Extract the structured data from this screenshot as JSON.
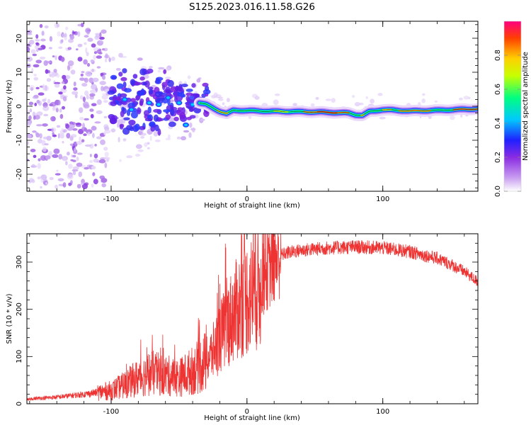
{
  "chart_data": [
    {
      "type": "heatmap",
      "title": "S125.2023.016.11.58.G26",
      "xlabel": "Height of straight line (km)",
      "ylabel": "Frequency (Hz)",
      "xlim": [
        -162,
        170
      ],
      "ylim": [
        -25,
        25
      ],
      "xticks": [
        -100,
        0,
        100
      ],
      "yticks": [
        -20,
        -10,
        0,
        10,
        20
      ],
      "colorbar": {
        "label": "Normalized spectral amplitude",
        "range": [
          0,
          1
        ],
        "ticks": [
          "0.0",
          "0.2",
          "0.4",
          "0.6",
          "0.8"
        ],
        "colormap": [
          "#ffffff",
          "#c89cf0",
          "#8a2be2",
          "#2020ff",
          "#00c8ff",
          "#00ff80",
          "#c8ff00",
          "#ffd000",
          "#ff4000",
          "#ff0080"
        ]
      },
      "ridge": {
        "x": [
          -35,
          -30,
          -25,
          -20,
          -15,
          -10,
          0,
          10,
          20,
          40,
          60,
          75,
          80,
          85,
          90,
          100,
          120,
          140,
          160,
          170
        ],
        "frequency": [
          1,
          0.5,
          -0.5,
          -1.5,
          -2.2,
          -1.2,
          -1.3,
          -1.4,
          -1.5,
          -1.6,
          -1.8,
          -2.0,
          -2.5,
          -2.7,
          -1.6,
          -1.0,
          -1.4,
          -1.2,
          -0.9,
          -0.8
        ]
      }
    },
    {
      "type": "line",
      "xlabel": "Height of straight line (km)",
      "ylabel": "SNR (10 * v/v)",
      "xlim": [
        -162,
        170
      ],
      "ylim": [
        0,
        360
      ],
      "xticks": [
        -100,
        0,
        100
      ],
      "yticks": [
        0,
        100,
        200,
        300
      ],
      "color": "#ee3333",
      "envelope": {
        "x": [
          -162,
          -140,
          -120,
          -100,
          -90,
          -80,
          -70,
          -60,
          -50,
          -40,
          -30,
          -25,
          -20,
          -15,
          -10,
          -5,
          0,
          5,
          10,
          15,
          20,
          25,
          30,
          40,
          60,
          80,
          100,
          120,
          140,
          150,
          160,
          170
        ],
        "snr": [
          10,
          14,
          20,
          28,
          40,
          55,
          65,
          60,
          55,
          70,
          90,
          110,
          140,
          165,
          190,
          210,
          225,
          235,
          250,
          280,
          300,
          315,
          320,
          325,
          330,
          332,
          330,
          322,
          308,
          295,
          280,
          258
        ]
      }
    }
  ]
}
